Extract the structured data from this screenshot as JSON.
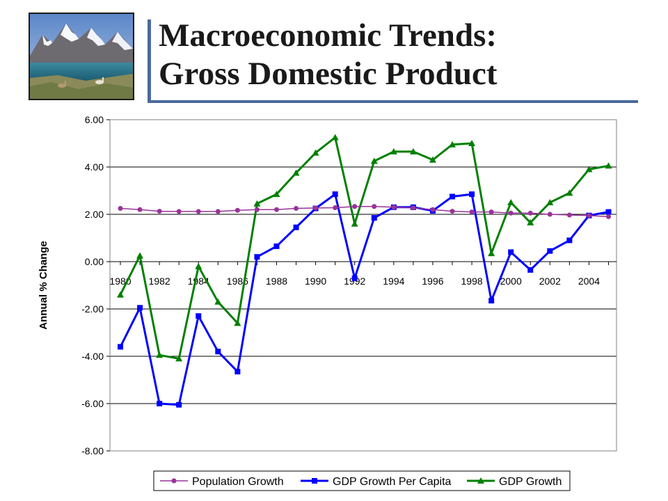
{
  "slide": {
    "title_line1": "Macroeconomic Trends:",
    "title_line2": "Gross Domestic Product"
  },
  "colors": {
    "population": "#993399",
    "gdp_per_capita": "#0000ff",
    "gdp": "#008000",
    "title_accent": "#4a6a9a"
  },
  "chart_data": {
    "type": "line",
    "title": "",
    "xlabel": "",
    "ylabel": "Annual  % Change",
    "ylim": [
      -8,
      6
    ],
    "yticks": [
      6,
      4,
      2,
      0,
      -2,
      -4,
      -6,
      -8
    ],
    "ytick_labels": [
      "6.00",
      "4.00",
      "2.00",
      "0.00",
      "-2.00",
      "-4.00",
      "-6.00",
      "-8.00"
    ],
    "xtick_labels": [
      "1980",
      "1982",
      "1984",
      "1986",
      "1988",
      "1990",
      "1992",
      "1994",
      "1996",
      "1998",
      "2000",
      "2002",
      "2004"
    ],
    "x": [
      1980,
      1981,
      1982,
      1983,
      1984,
      1985,
      1986,
      1987,
      1988,
      1989,
      1990,
      1991,
      1992,
      1993,
      1994,
      1995,
      1996,
      1997,
      1998,
      1999,
      2000,
      2001,
      2002,
      2003,
      2004,
      2005
    ],
    "grid": "horizontal",
    "legend_position": "bottom",
    "series": [
      {
        "name": "Population Growth",
        "marker": "circle",
        "values": [
          2.25,
          2.2,
          2.13,
          2.12,
          2.12,
          2.12,
          2.17,
          2.2,
          2.2,
          2.25,
          2.27,
          2.28,
          2.33,
          2.33,
          2.3,
          2.27,
          2.2,
          2.13,
          2.1,
          2.1,
          2.05,
          2.05,
          2.0,
          1.97,
          1.95,
          1.9
        ]
      },
      {
        "name": "GDP Growth Per Capita",
        "marker": "square",
        "values": [
          -3.6,
          -1.95,
          -6.0,
          -6.05,
          -2.3,
          -3.8,
          -4.65,
          0.2,
          0.65,
          1.45,
          2.25,
          2.85,
          -0.7,
          1.85,
          2.3,
          2.3,
          2.15,
          2.75,
          2.85,
          -1.65,
          0.4,
          -0.35,
          0.45,
          0.9,
          1.95,
          2.1
        ]
      },
      {
        "name": "GDP Growth",
        "marker": "triangle",
        "values": [
          -1.4,
          0.25,
          -3.95,
          -4.1,
          -0.2,
          -1.7,
          -2.6,
          2.45,
          2.85,
          3.75,
          4.6,
          5.25,
          1.6,
          4.25,
          4.65,
          4.65,
          4.3,
          4.95,
          5.0,
          0.35,
          2.5,
          1.65,
          2.5,
          2.9,
          3.9,
          4.05
        ]
      }
    ]
  }
}
